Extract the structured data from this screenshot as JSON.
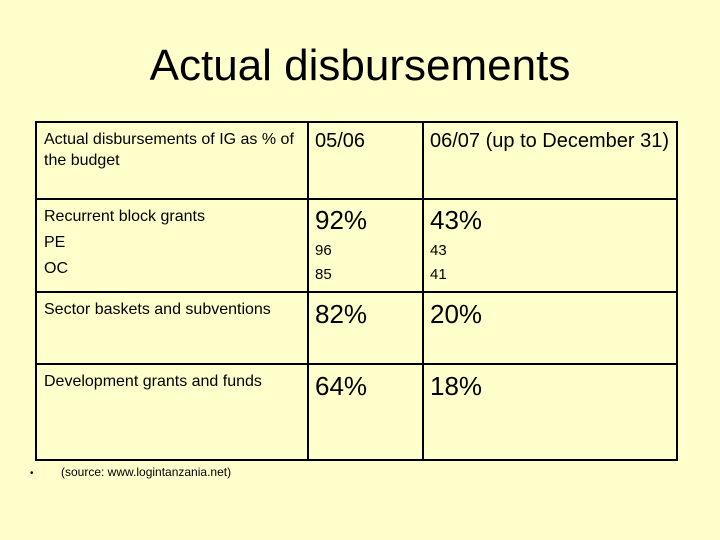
{
  "title": "Actual disbursements",
  "table": {
    "header": {
      "label": "Actual disbursements of IG as % of the budget",
      "col1": "05/06",
      "col2": "06/07 (up to December 31)"
    },
    "rows": [
      {
        "label_lines": [
          "Recurrent block grants",
          "PE",
          "OC"
        ],
        "col1_main": "92%",
        "col1_sub": [
          "96",
          "85"
        ],
        "col2_main": "43%",
        "col2_sub": [
          "43",
          "41"
        ]
      },
      {
        "label": "Sector baskets and subventions",
        "col1": "82%",
        "col2": "20%"
      },
      {
        "label": "Development grants and funds",
        "col1": "64%",
        "col2": "18%"
      }
    ]
  },
  "footnote": {
    "bullet": "•",
    "text": "(source: www.logintanzania.net)"
  }
}
